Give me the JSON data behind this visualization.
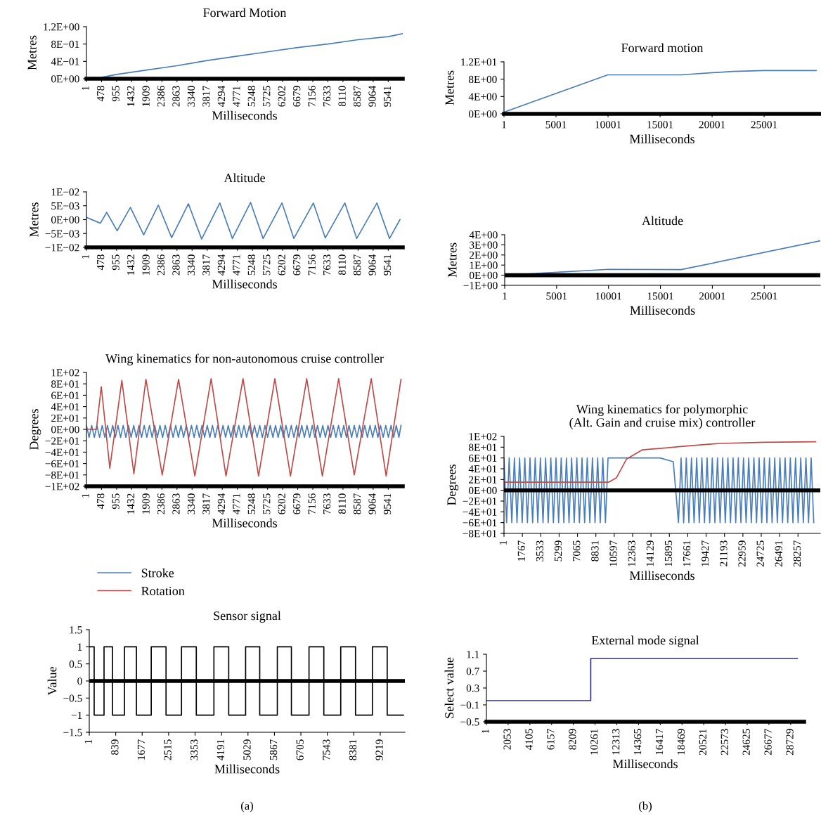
{
  "chart_data": [
    {
      "type": "line",
      "title": "Forward Motion",
      "xlabel": "Milliseconds",
      "ylabel": "Metres",
      "xlim": [
        1,
        10000
      ],
      "ylim": [
        0,
        1.2
      ],
      "xticks": [
        1,
        478,
        955,
        1432,
        1909,
        2386,
        2863,
        3340,
        3817,
        4294,
        4771,
        5248,
        5725,
        6202,
        6679,
        7156,
        7633,
        8110,
        8587,
        9064,
        9541
      ],
      "yticks": [
        {
          "value": 0,
          "label": "0E+00"
        },
        {
          "value": 0.4,
          "label": "4E−01"
        },
        {
          "value": 0.8,
          "label": "8E−01"
        },
        {
          "value": 1.2,
          "label": "1.2E+00"
        }
      ],
      "grid": false,
      "legend": false,
      "series": [
        {
          "color": "#4a7ebb",
          "x": [
            1,
            478,
            955,
            1909,
            2863,
            3817,
            4771,
            5725,
            6679,
            7633,
            8587,
            9541,
            10000
          ],
          "values": [
            0.02,
            0.03,
            0.1,
            0.2,
            0.3,
            0.42,
            0.52,
            0.62,
            0.72,
            0.8,
            0.9,
            0.97,
            1.04
          ]
        }
      ]
    },
    {
      "type": "line",
      "title": "Forward motion",
      "xlabel": "Milliseconds",
      "ylabel": "Metres",
      "xlim": [
        1,
        30400
      ],
      "ylim": [
        0,
        12
      ],
      "xticks": [
        1,
        5001,
        10001,
        15001,
        20001,
        25001
      ],
      "yticks": [
        {
          "value": 0,
          "label": "0E+00"
        },
        {
          "value": 4,
          "label": "4E+00"
        },
        {
          "value": 8,
          "label": "8E+00"
        },
        {
          "value": 12,
          "label": "1.2E+01"
        }
      ],
      "grid": false,
      "legend": false,
      "series": [
        {
          "color": "#4a7ebb",
          "x": [
            1,
            9980,
            17000,
            22000,
            25000,
            30000
          ],
          "values": [
            0.4,
            9,
            9,
            9.8,
            10,
            10
          ]
        }
      ]
    },
    {
      "type": "line",
      "title": "Altitude",
      "xlabel": "Milliseconds",
      "ylabel": "Metres",
      "xlim": [
        1,
        10000
      ],
      "ylim": [
        -0.01,
        0.01
      ],
      "xticks": [
        1,
        478,
        955,
        1432,
        1909,
        2386,
        2863,
        3340,
        3817,
        4294,
        4771,
        5248,
        5725,
        6202,
        6679,
        7156,
        7633,
        8110,
        8587,
        9064,
        9541
      ],
      "yticks": [
        {
          "value": -0.01,
          "label": "−1E−02"
        },
        {
          "value": -0.005,
          "label": "−5E−03"
        },
        {
          "value": 0,
          "label": "0E+00"
        },
        {
          "value": 0.005,
          "label": "5E−03"
        },
        {
          "value": 0.01,
          "label": "1E−02"
        }
      ],
      "grid": false,
      "legend": false,
      "series": [
        {
          "color": "#4a7ebb",
          "x": [
            1,
            441,
            640,
            971,
            1390,
            1810,
            2274,
            2693,
            3223,
            3642,
            4216,
            4614,
            5188,
            5585,
            6181,
            6556,
            7174,
            7550,
            8168,
            8543,
            9183,
            9581,
            9912
          ],
          "values": [
            0.0008,
            -0.0013,
            0.0026,
            -0.004,
            0.0044,
            -0.0055,
            0.0052,
            -0.0065,
            0.0057,
            -0.007,
            0.006,
            -0.0068,
            0.0062,
            -0.0068,
            0.006,
            -0.0068,
            0.006,
            -0.0066,
            0.006,
            -0.0068,
            0.006,
            -0.0068,
            0
          ]
        }
      ]
    },
    {
      "type": "line",
      "title": "Altitude",
      "xlabel": "Milliseconds",
      "ylabel": "Metres",
      "xlim": [
        1,
        30400
      ],
      "ylim": [
        -1,
        4
      ],
      "xticks": [
        1,
        5001,
        10001,
        15001,
        20001,
        25001
      ],
      "yticks": [
        {
          "value": -1,
          "label": "−1E+00"
        },
        {
          "value": 0,
          "label": "0E+00"
        },
        {
          "value": 1,
          "label": "1E+00"
        },
        {
          "value": 2,
          "label": "2E+00"
        },
        {
          "value": 3,
          "label": "3E+00"
        },
        {
          "value": 4,
          "label": "4E+00"
        }
      ],
      "grid": false,
      "legend": false,
      "ref_lines": [
        {
          "axis": "y",
          "value": 0,
          "color": "#000000"
        }
      ],
      "series": [
        {
          "color": "#4a7ebb",
          "x": [
            1,
            10000,
            17000,
            30400
          ],
          "values": [
            0,
            0.58,
            0.55,
            3.4
          ]
        }
      ]
    },
    {
      "type": "line",
      "title": "Wing kinematics for non-autonomous cruise controller",
      "xlabel": "Milliseconds",
      "ylabel": "Degrees",
      "xlim": [
        1,
        10000
      ],
      "ylim": [
        -100,
        100
      ],
      "xticks": [
        1,
        478,
        955,
        1432,
        1909,
        2386,
        2863,
        3340,
        3817,
        4294,
        4771,
        5248,
        5725,
        6202,
        6679,
        7156,
        7633,
        8110,
        8587,
        9064,
        9541
      ],
      "yticks": [
        {
          "value": -100,
          "label": "−1E+02"
        },
        {
          "value": -80,
          "label": "−8E+01"
        },
        {
          "value": -60,
          "label": "−6E+01"
        },
        {
          "value": -40,
          "label": "−4E+01"
        },
        {
          "value": -20,
          "label": "−2E+01"
        },
        {
          "value": 0,
          "label": "0E+00"
        },
        {
          "value": 20,
          "label": "2E+01"
        },
        {
          "value": 40,
          "label": "4E+01"
        },
        {
          "value": 60,
          "label": "6E+01"
        },
        {
          "value": 80,
          "label": "8E+01"
        },
        {
          "value": 100,
          "label": "1E+02"
        }
      ],
      "grid": false,
      "legend": "bottom",
      "series": [
        {
          "name": "Stroke",
          "color": "#4a7ebb",
          "x": [
            1,
            84,
            167,
            250,
            333,
            416,
            499,
            582,
            665,
            748,
            831,
            914,
            997,
            1080,
            1163,
            1246,
            1329,
            1412,
            1495,
            1578,
            1661,
            1744,
            1827,
            1910,
            1993,
            2076,
            2159,
            2242,
            2325,
            2408,
            2491,
            2574,
            2657,
            2740,
            2823,
            2906,
            2989,
            3072,
            3155,
            3238,
            3321,
            3404,
            3487,
            3570,
            3653,
            3736,
            3819,
            3902,
            3985,
            4068,
            4151,
            4234,
            4317,
            4400,
            4483,
            4566,
            4649,
            4732,
            4815,
            4898,
            4981,
            5064,
            5147,
            5230,
            5313,
            5396,
            5479,
            5562,
            5645,
            5728,
            5811,
            5894,
            5977,
            6060,
            6143,
            6226,
            6309,
            6392,
            6475,
            6558,
            6641,
            6724,
            6807,
            6890,
            6973,
            7056,
            7139,
            7222,
            7305,
            7388,
            7471,
            7554,
            7637,
            7720,
            7803,
            7886,
            7969,
            8052,
            8135,
            8218,
            8301,
            8384,
            8467,
            8550,
            8633,
            8716,
            8799,
            8882,
            8965,
            9048,
            9131,
            9214,
            9297,
            9380,
            9463,
            9546,
            9629,
            9712,
            9795,
            9878,
            9944
          ],
          "values": [
            7,
            -14,
            7,
            -14,
            7,
            -14,
            7,
            -14,
            7,
            -14,
            7,
            -14,
            7,
            -14,
            7,
            -14,
            7,
            -14,
            7,
            -14,
            7,
            -14,
            7,
            -14,
            7,
            -14,
            7,
            -14,
            7,
            -14,
            7,
            -14,
            7,
            -14,
            7,
            -14,
            7,
            -14,
            7,
            -14,
            7,
            -14,
            7,
            -14,
            7,
            -14,
            7,
            -14,
            7,
            -14,
            7,
            -14,
            7,
            -14,
            7,
            -14,
            7,
            -14,
            7,
            -14,
            7,
            -14,
            7,
            -14,
            7,
            -14,
            7,
            -14,
            7,
            -14,
            7,
            -14,
            7,
            -14,
            7,
            -14,
            7,
            -14,
            7,
            -14,
            7,
            -14,
            7,
            -14,
            7,
            -14,
            7,
            -14,
            7,
            -14,
            7,
            -14,
            7,
            -14,
            7,
            -14,
            7,
            -14,
            7,
            -14,
            7,
            -14,
            7,
            -14,
            7,
            -14,
            7,
            -14,
            7,
            -14,
            7,
            -14,
            7,
            -14,
            7,
            -14,
            7,
            -14,
            7,
            -14,
            7
          ]
        },
        {
          "name": "Rotation",
          "color": "#be4b48",
          "x": [
            1,
            314,
            470,
            739,
            1120,
            1500,
            1881,
            2396,
            2912,
            3427,
            3942,
            4412,
            4950,
            5442,
            5957,
            6450,
            6965,
            7458,
            7973,
            8466,
            9003,
            9474,
            9944
          ],
          "values": [
            0,
            0,
            75,
            -68,
            86,
            -78,
            88,
            -80,
            88,
            -82,
            89,
            -82,
            89,
            -82,
            89,
            -82,
            89,
            -82,
            89,
            -80,
            89,
            -82,
            88
          ]
        }
      ]
    },
    {
      "type": "line",
      "title": "Wing kinematics for polymorphic\n(Alt. Gain and cruise mix) controller",
      "xlabel": "Milliseconds",
      "ylabel": "Degrees",
      "xlim": [
        1,
        30400
      ],
      "ylim": [
        -80,
        100
      ],
      "xticks": [
        1,
        1767,
        3533,
        5299,
        7065,
        8831,
        10597,
        12363,
        14129,
        15895,
        17661,
        19427,
        21193,
        22959,
        24725,
        26491,
        28257
      ],
      "yticks": [
        {
          "value": -80,
          "label": "−8E+01"
        },
        {
          "value": -60,
          "label": "−6E+01"
        },
        {
          "value": -40,
          "label": "−4E+01"
        },
        {
          "value": -20,
          "label": "−2E+01"
        },
        {
          "value": 0,
          "label": "0E+00"
        },
        {
          "value": 20,
          "label": "2E+01"
        },
        {
          "value": 40,
          "label": "4E+01"
        },
        {
          "value": 60,
          "label": "6E+01"
        },
        {
          "value": 80,
          "label": "8E+01"
        },
        {
          "value": 100,
          "label": "1E+02"
        }
      ],
      "grid": false,
      "legend": false,
      "ref_lines": [
        {
          "axis": "y",
          "value": 0,
          "color": "#000000"
        }
      ],
      "series": [
        {
          "color": "#4a7ebb",
          "x": [
            1,
            251,
            501,
            751,
            1001,
            1251,
            1501,
            1751,
            2001,
            2251,
            2501,
            2751,
            3001,
            3251,
            3501,
            3751,
            4001,
            4251,
            4501,
            4751,
            5001,
            5251,
            5501,
            5751,
            6001,
            6251,
            6501,
            6751,
            7001,
            7251,
            7501,
            7751,
            8001,
            8251,
            8501,
            8751,
            9001,
            9251,
            9501,
            9751,
            10001,
            10050,
            15000,
            16270,
            16770,
            17020,
            17270,
            17520,
            17770,
            18020,
            18270,
            18520,
            18770,
            19020,
            19270,
            19520,
            19770,
            20020,
            20270,
            20520,
            20770,
            21020,
            21270,
            21520,
            21770,
            22020,
            22270,
            22520,
            22770,
            23020,
            23270,
            23520,
            23770,
            24020,
            24270,
            24520,
            24770,
            25020,
            25270,
            25520,
            25770,
            26020,
            26270,
            26520,
            26770,
            27020,
            27270,
            27520,
            27770,
            28020,
            28270,
            28520,
            28770,
            29020,
            29270,
            29520,
            29770
          ],
          "values": [
            60,
            -60,
            60,
            -60,
            60,
            -60,
            60,
            -60,
            60,
            -60,
            60,
            -60,
            60,
            -60,
            60,
            -60,
            60,
            -60,
            60,
            -60,
            60,
            -60,
            60,
            -60,
            60,
            -60,
            60,
            -60,
            60,
            -60,
            60,
            -60,
            60,
            -60,
            60,
            -60,
            60,
            -60,
            60,
            -60,
            60,
            60,
            60,
            53,
            -60,
            60,
            -60,
            60,
            -60,
            60,
            -60,
            60,
            -60,
            60,
            -60,
            60,
            -60,
            60,
            -60,
            60,
            -60,
            60,
            -60,
            60,
            -60,
            60,
            -60,
            60,
            -60,
            60,
            -60,
            60,
            -60,
            60,
            -60,
            60,
            -60,
            60,
            -60,
            60,
            -60,
            60,
            -60,
            60,
            -60,
            60,
            -60,
            60,
            -60,
            60,
            -60,
            60,
            -60,
            60,
            -60,
            60,
            -60
          ]
        },
        {
          "color": "#be4b48",
          "x": [
            1,
            30,
            10050,
            10800,
            11780,
            13280,
            15770,
            16770,
            20760,
            25000,
            29950
          ],
          "values": [
            0,
            15,
            15,
            23,
            58,
            75,
            79,
            81,
            87,
            89,
            90
          ]
        }
      ]
    },
    {
      "type": "step",
      "title": "Sensor signal",
      "xlabel": "Milliseconds",
      "ylabel": "Value",
      "xlim": [
        1,
        10000
      ],
      "ylim": [
        -1.5,
        1.5
      ],
      "xticks": [
        1,
        839,
        1677,
        2515,
        3353,
        4191,
        5029,
        5867,
        6705,
        7543,
        8381,
        9219
      ],
      "yticks": [
        {
          "value": -1.5,
          "label": "−1.5"
        },
        {
          "value": -1,
          "label": "−1"
        },
        {
          "value": -0.5,
          "label": "−0.5"
        },
        0,
        0.5,
        1,
        1.5
      ],
      "grid": false,
      "legend": false,
      "ref_lines": [
        {
          "axis": "y",
          "value": 0,
          "color": "#000000"
        }
      ],
      "annotations": [
        "(a)"
      ],
      "series": [
        {
          "color": "#000000",
          "x": [
            1,
            156,
            469,
            737,
            1116,
            1495,
            1964,
            2433,
            2923,
            3392,
            3950,
            4419,
            4954,
            5401,
            5959,
            6405,
            6963,
            7432,
            7968,
            8436,
            8971,
            9440,
            9953
          ],
          "values": [
            1,
            -1,
            1,
            -1,
            1,
            -1,
            1,
            -1,
            1,
            -1,
            1,
            -1,
            1,
            -1,
            1,
            -1,
            1,
            -1,
            1,
            -1,
            1,
            -1,
            -1
          ]
        }
      ]
    },
    {
      "type": "step",
      "title": "External mode signal",
      "xlabel": "Milliseconds",
      "ylabel": "Select value",
      "xlim": [
        1,
        30000
      ],
      "ylim": [
        -0.5,
        1.1
      ],
      "xticks": [
        1,
        2053,
        4105,
        6157,
        8209,
        10261,
        12313,
        14365,
        16417,
        18469,
        20521,
        22573,
        24625,
        26677,
        28729
      ],
      "yticks": [
        {
          "value": -0.5,
          "label": "−0.5"
        },
        {
          "value": -0.1,
          "label": "−0.1"
        },
        0.3,
        0.7,
        1.1
      ],
      "grid": false,
      "legend": false,
      "annotations": [
        "(b)"
      ],
      "series": [
        {
          "color": "#2e2e80",
          "x": [
            1,
            9852,
            29360
          ],
          "values": [
            0,
            1,
            1
          ]
        }
      ]
    }
  ]
}
